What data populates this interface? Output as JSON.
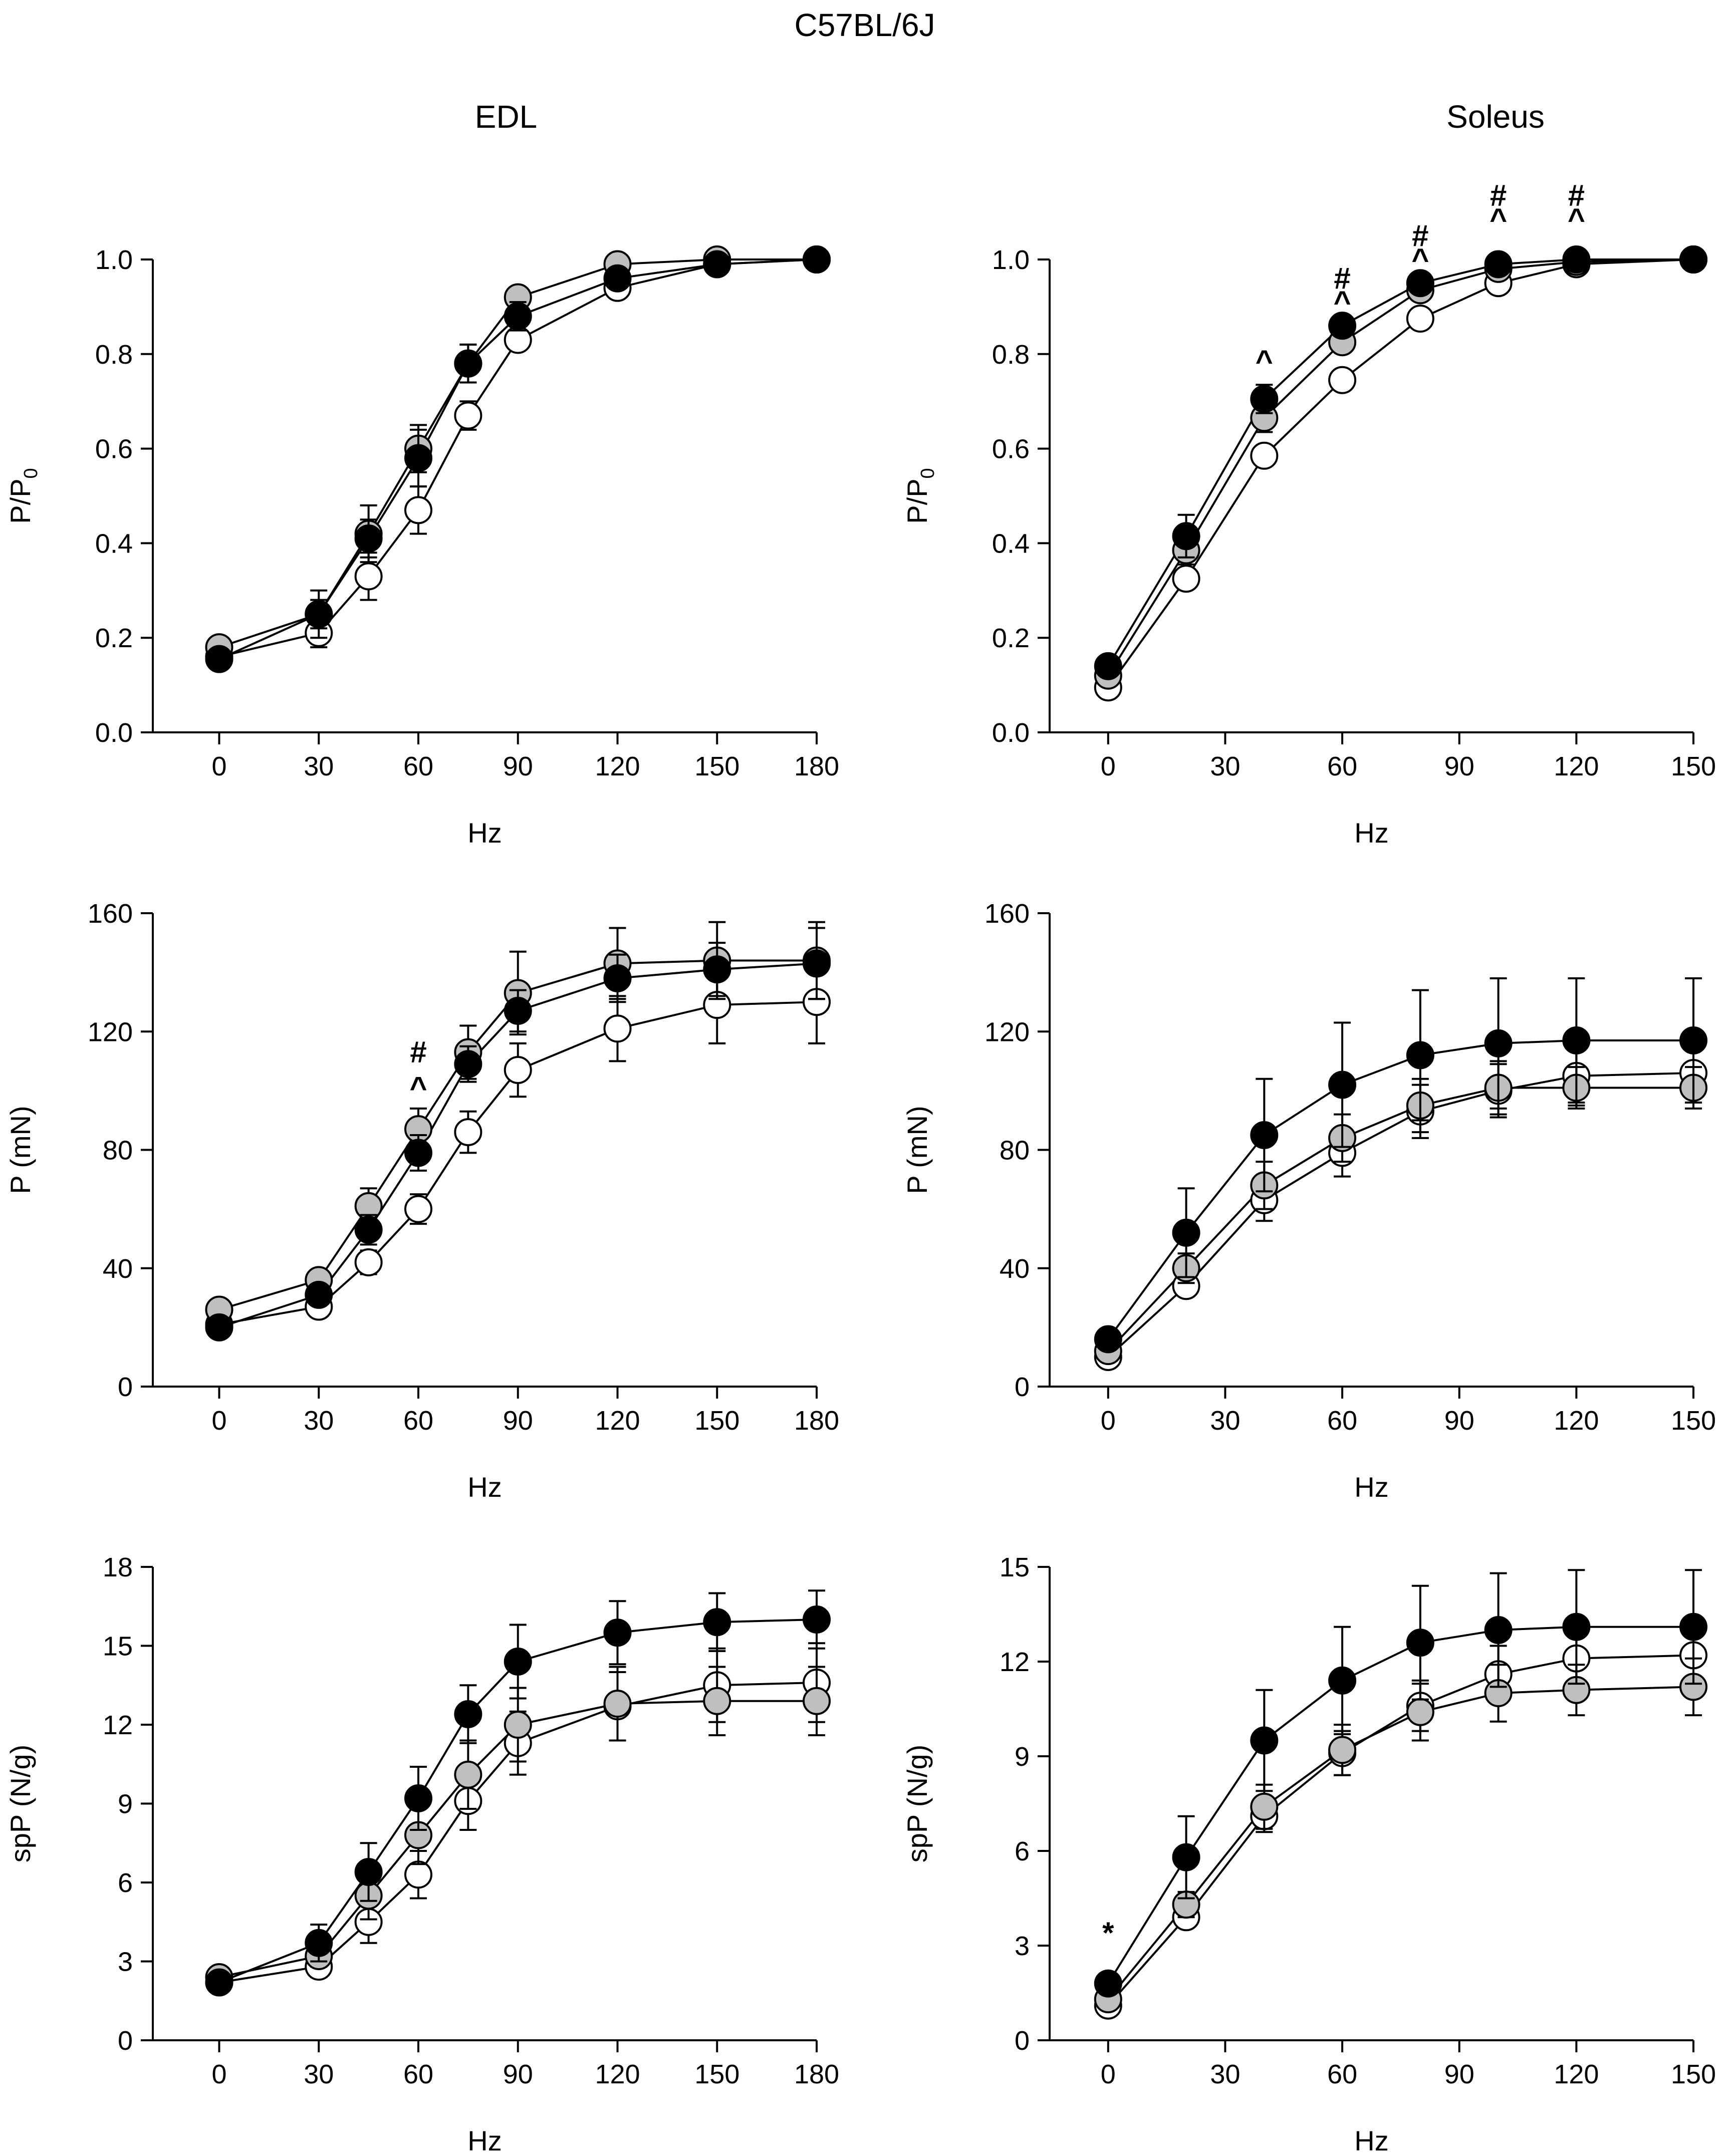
{
  "figure": {
    "title": "C57BL/6J",
    "column_titles": [
      "EDL",
      "Soleus"
    ]
  },
  "legend_note": "Three series with open, grey and black filled circle markers (no legend shown).",
  "series_styles": [
    {
      "name": "open",
      "fill": "#ffffff"
    },
    {
      "name": "grey",
      "fill": "#bfbfbf"
    },
    {
      "name": "black",
      "fill": "#000000"
    }
  ],
  "chart_data": [
    {
      "id": "edl-pp0",
      "type": "line",
      "muscle": "EDL",
      "xlabel": "Hz",
      "ylabel": "P/P",
      "ylabel_sub": "0",
      "xlim": [
        -20,
        180
      ],
      "ylim": [
        0,
        1.0
      ],
      "xticks": [
        0,
        30,
        60,
        90,
        120,
        150,
        180
      ],
      "yticks": [
        0.0,
        0.2,
        0.4,
        0.6,
        0.8,
        1.0
      ],
      "ytick_decimals": 1,
      "x": [
        0,
        30,
        45,
        60,
        75,
        90,
        120,
        150,
        180
      ],
      "series": [
        {
          "name": "open",
          "values": [
            0.16,
            0.21,
            0.33,
            0.47,
            0.67,
            0.83,
            0.94,
            0.99,
            1.0
          ],
          "errors": [
            0.01,
            0.03,
            0.05,
            0.05,
            0.03,
            0.02,
            0.01,
            0.005,
            0
          ]
        },
        {
          "name": "grey",
          "values": [
            0.18,
            0.25,
            0.42,
            0.6,
            0.78,
            0.92,
            0.99,
            1.0,
            1.0
          ],
          "errors": [
            0.01,
            0.05,
            0.06,
            0.05,
            0.04,
            0.02,
            0.01,
            0,
            0
          ]
        },
        {
          "name": "black",
          "values": [
            0.155,
            0.25,
            0.41,
            0.58,
            0.78,
            0.88,
            0.96,
            0.99,
            1.0
          ],
          "errors": [
            0.01,
            0.03,
            0.04,
            0.06,
            0.04,
            0.03,
            0.01,
            0.005,
            0
          ]
        }
      ],
      "annotations": []
    },
    {
      "id": "sol-pp0",
      "type": "line",
      "muscle": "Soleus",
      "xlabel": "Hz",
      "ylabel": "P/P",
      "ylabel_sub": "0",
      "xlim": [
        -15,
        150
      ],
      "ylim": [
        0,
        1.0
      ],
      "xticks": [
        0,
        30,
        60,
        90,
        120,
        150
      ],
      "yticks": [
        0.0,
        0.2,
        0.4,
        0.6,
        0.8,
        1.0
      ],
      "ytick_decimals": 1,
      "x": [
        0,
        20,
        40,
        60,
        80,
        100,
        120,
        150
      ],
      "series": [
        {
          "name": "open",
          "values": [
            0.095,
            0.325,
            0.585,
            0.745,
            0.875,
            0.95,
            0.99,
            1.0
          ],
          "errors": [
            0.01,
            0.02,
            0.02,
            0.02,
            0.015,
            0.01,
            0.005,
            0
          ]
        },
        {
          "name": "grey",
          "values": [
            0.12,
            0.385,
            0.665,
            0.825,
            0.935,
            0.98,
            0.995,
            1.0
          ],
          "errors": [
            0.01,
            0.03,
            0.03,
            0.02,
            0.01,
            0.01,
            0.005,
            0
          ]
        },
        {
          "name": "black",
          "values": [
            0.14,
            0.415,
            0.705,
            0.86,
            0.95,
            0.99,
            1.0,
            1.0
          ],
          "errors": [
            0.01,
            0.045,
            0.03,
            0.02,
            0.015,
            0.01,
            0.005,
            0
          ]
        }
      ],
      "annotations": [
        {
          "x": 40,
          "y": 0.785,
          "text": "^"
        },
        {
          "x": 60,
          "y": 0.96,
          "text": "#"
        },
        {
          "x": 60,
          "y": 0.91,
          "text": "^"
        },
        {
          "x": 80,
          "y": 1.05,
          "text": "#"
        },
        {
          "x": 80,
          "y": 1.0,
          "text": "^"
        },
        {
          "x": 100,
          "y": 1.135,
          "text": "#"
        },
        {
          "x": 100,
          "y": 1.085,
          "text": "^"
        },
        {
          "x": 120,
          "y": 1.135,
          "text": "#"
        },
        {
          "x": 120,
          "y": 1.085,
          "text": "^"
        }
      ]
    },
    {
      "id": "edl-p",
      "type": "line",
      "muscle": "EDL",
      "xlabel": "Hz",
      "ylabel": "P (mN)",
      "ylabel_sub": "",
      "xlim": [
        -20,
        180
      ],
      "ylim": [
        0,
        160
      ],
      "xticks": [
        0,
        30,
        60,
        90,
        120,
        150,
        180
      ],
      "yticks": [
        0,
        40,
        80,
        120,
        160
      ],
      "ytick_decimals": 0,
      "x": [
        0,
        30,
        45,
        60,
        75,
        90,
        120,
        150,
        180
      ],
      "series": [
        {
          "name": "open",
          "values": [
            21,
            27,
            42,
            60,
            86,
            107,
            121,
            129,
            130
          ],
          "errors": [
            2,
            2,
            4,
            5,
            7,
            9,
            11,
            13,
            14
          ]
        },
        {
          "name": "grey",
          "values": [
            26,
            36,
            61,
            87,
            113,
            133,
            143,
            144,
            144
          ],
          "errors": [
            2,
            3,
            6,
            7,
            9,
            14,
            12,
            13,
            13
          ]
        },
        {
          "name": "black",
          "values": [
            20,
            31,
            53,
            79,
            109,
            127,
            138,
            141,
            143
          ],
          "errors": [
            2,
            3,
            5,
            6,
            6,
            7,
            8,
            9,
            12
          ]
        }
      ],
      "annotations": [
        {
          "x": 60,
          "y": 113,
          "text": "#"
        },
        {
          "x": 60,
          "y": 101,
          "text": "^"
        }
      ]
    },
    {
      "id": "sol-p",
      "type": "line",
      "muscle": "Soleus",
      "xlabel": "Hz",
      "ylabel": "P (mN)",
      "ylabel_sub": "",
      "xlim": [
        -15,
        150
      ],
      "ylim": [
        0,
        160
      ],
      "xticks": [
        0,
        30,
        60,
        90,
        120,
        150
      ],
      "yticks": [
        0,
        40,
        80,
        120,
        160
      ],
      "ytick_decimals": 0,
      "x": [
        0,
        20,
        40,
        60,
        80,
        100,
        120,
        150
      ],
      "series": [
        {
          "name": "open",
          "values": [
            10,
            34,
            63,
            79,
            93,
            100,
            105,
            106
          ],
          "errors": [
            1,
            3,
            7,
            8,
            9,
            9,
            10,
            10
          ]
        },
        {
          "name": "grey",
          "values": [
            12,
            40,
            68,
            84,
            95,
            101,
            101,
            101
          ],
          "errors": [
            1,
            5,
            8,
            8,
            9,
            9,
            7,
            7
          ]
        },
        {
          "name": "black",
          "values": [
            16,
            52,
            85,
            102,
            112,
            116,
            117,
            117
          ],
          "errors": [
            2,
            15,
            19,
            21,
            22,
            22,
            21,
            21
          ]
        }
      ],
      "annotations": []
    },
    {
      "id": "edl-spp",
      "type": "line",
      "muscle": "EDL",
      "xlabel": "Hz",
      "ylabel": "spP (N/g)",
      "ylabel_sub": "",
      "xlim": [
        -20,
        180
      ],
      "ylim": [
        0,
        18
      ],
      "xticks": [
        0,
        30,
        60,
        90,
        120,
        150,
        180
      ],
      "yticks": [
        0,
        3,
        6,
        9,
        12,
        15,
        18
      ],
      "ytick_decimals": 0,
      "x": [
        0,
        30,
        45,
        60,
        75,
        90,
        120,
        150,
        180
      ],
      "series": [
        {
          "name": "open",
          "values": [
            2.2,
            2.8,
            4.5,
            6.3,
            9.1,
            11.3,
            12.7,
            13.5,
            13.6
          ],
          "errors": [
            0.2,
            0.4,
            0.8,
            0.9,
            1.1,
            1.2,
            1.3,
            1.4,
            1.5
          ]
        },
        {
          "name": "grey",
          "values": [
            2.4,
            3.2,
            5.5,
            7.8,
            10.1,
            12.0,
            12.8,
            12.9,
            12.9
          ],
          "errors": [
            0.2,
            0.4,
            0.9,
            1.1,
            1.3,
            1.4,
            1.4,
            1.3,
            1.3
          ]
        },
        {
          "name": "black",
          "values": [
            2.2,
            3.7,
            6.4,
            9.2,
            12.4,
            14.4,
            15.5,
            15.9,
            16.0
          ],
          "errors": [
            0.2,
            0.7,
            1.1,
            1.2,
            1.1,
            1.4,
            1.2,
            1.1,
            1.1
          ]
        }
      ],
      "annotations": []
    },
    {
      "id": "sol-spp",
      "type": "line",
      "muscle": "Soleus",
      "xlabel": "Hz",
      "ylabel": "spP (N/g)",
      "ylabel_sub": "",
      "xlim": [
        -15,
        150
      ],
      "ylim": [
        0,
        15
      ],
      "xticks": [
        0,
        30,
        60,
        90,
        120,
        150
      ],
      "yticks": [
        0,
        3,
        6,
        9,
        12,
        15
      ],
      "ytick_decimals": 0,
      "x": [
        0,
        20,
        40,
        60,
        80,
        100,
        120,
        150
      ],
      "series": [
        {
          "name": "open",
          "values": [
            1.1,
            3.9,
            7.1,
            9.1,
            10.6,
            11.6,
            12.1,
            12.2
          ],
          "errors": [
            0.1,
            0.3,
            0.5,
            0.7,
            0.8,
            0.9,
            1.0,
            1.0
          ]
        },
        {
          "name": "grey",
          "values": [
            1.3,
            4.3,
            7.4,
            9.2,
            10.4,
            11.0,
            11.1,
            11.2
          ],
          "errors": [
            0.1,
            0.4,
            0.7,
            0.8,
            0.9,
            0.9,
            0.8,
            0.9
          ]
        },
        {
          "name": "black",
          "values": [
            1.8,
            5.8,
            9.5,
            11.4,
            12.6,
            13.0,
            13.1,
            13.1
          ],
          "errors": [
            0.2,
            1.3,
            1.6,
            1.7,
            1.8,
            1.8,
            1.8,
            1.8
          ]
        }
      ],
      "annotations": [
        {
          "x": 0,
          "y": 3.4,
          "text": "*"
        }
      ]
    }
  ]
}
